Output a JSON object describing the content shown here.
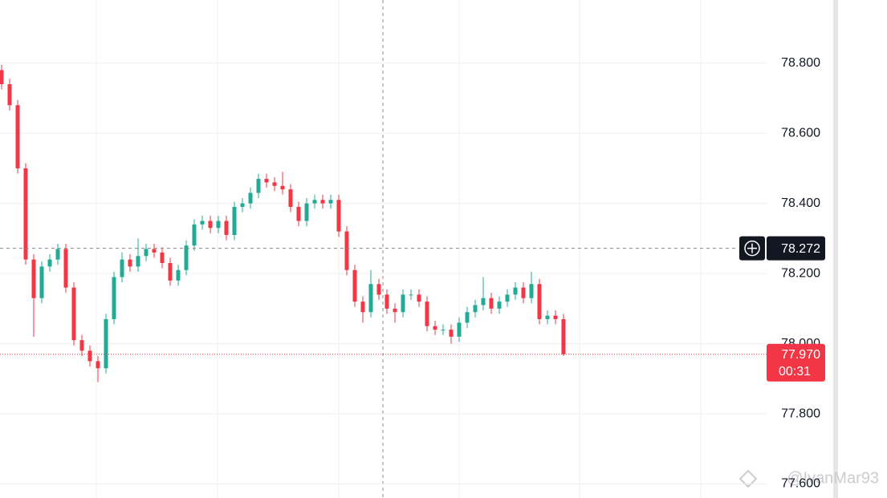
{
  "chart_data": {
    "type": "candlestick",
    "up_color": "#22ab94",
    "down_color": "#f23645",
    "ylim": [
      77.56,
      78.98
    ],
    "yticks": [
      {
        "value": 77.6,
        "label": "77.600"
      },
      {
        "value": 77.8,
        "label": "77.800"
      },
      {
        "value": 78.0,
        "label": "78.000"
      },
      {
        "value": 78.2,
        "label": "78.200"
      },
      {
        "value": 78.4,
        "label": "78.400"
      },
      {
        "value": 78.6,
        "label": "78.600"
      },
      {
        "value": 78.8,
        "label": "78.800"
      }
    ],
    "grid": true,
    "open": [
      78.78,
      78.74,
      78.68,
      78.5,
      78.24,
      78.13,
      78.22,
      78.24,
      78.27,
      78.16,
      78.01,
      77.98,
      77.95,
      77.93,
      78.07,
      78.19,
      78.24,
      78.22,
      78.25,
      78.27,
      78.26,
      78.23,
      78.18,
      78.21,
      78.28,
      78.34,
      78.35,
      78.33,
      78.35,
      78.31,
      78.39,
      78.4,
      78.43,
      78.47,
      78.46,
      78.45,
      78.44,
      78.39,
      78.35,
      78.4,
      78.41,
      78.4,
      78.41,
      78.32,
      78.21,
      78.12,
      78.09,
      78.17,
      78.14,
      78.1,
      78.09,
      78.14,
      78.14,
      78.12,
      78.05,
      78.04,
      78.04,
      78.02,
      78.06,
      78.09,
      78.11,
      78.13,
      78.1,
      78.12,
      78.14,
      78.16,
      78.13,
      78.17,
      78.07,
      78.08,
      78.07
    ],
    "high": [
      78.795,
      78.755,
      78.695,
      78.515,
      78.255,
      78.235,
      78.255,
      78.285,
      78.285,
      78.175,
      78.025,
      77.995,
      77.965,
      78.085,
      78.205,
      78.26,
      78.255,
      78.3,
      78.285,
      78.285,
      78.275,
      78.245,
      78.225,
      78.295,
      78.355,
      78.365,
      78.365,
      78.365,
      78.365,
      78.405,
      78.415,
      78.445,
      78.485,
      78.485,
      78.475,
      78.49,
      78.455,
      78.405,
      78.415,
      78.425,
      78.425,
      78.425,
      78.425,
      78.335,
      78.225,
      78.135,
      78.21,
      78.185,
      78.155,
      78.115,
      78.155,
      78.155,
      78.155,
      78.135,
      78.065,
      78.055,
      78.055,
      78.075,
      78.105,
      78.125,
      78.19,
      78.145,
      78.135,
      78.155,
      78.175,
      78.175,
      78.205,
      78.185,
      78.095,
      78.095,
      78.085
    ],
    "low": [
      78.725,
      78.665,
      78.485,
      78.225,
      78.02,
      78.115,
      78.205,
      78.225,
      78.145,
      77.995,
      77.965,
      77.935,
      77.89,
      77.915,
      78.055,
      78.175,
      78.205,
      78.205,
      78.235,
      78.245,
      78.215,
      78.165,
      78.165,
      78.195,
      78.265,
      78.325,
      78.315,
      78.315,
      78.295,
      78.295,
      78.375,
      78.385,
      78.415,
      78.445,
      78.435,
      78.425,
      78.375,
      78.335,
      78.335,
      78.385,
      78.385,
      78.385,
      78.305,
      78.195,
      78.105,
      78.06,
      78.075,
      78.125,
      78.085,
      78.06,
      78.075,
      78.125,
      78.105,
      78.035,
      78.025,
      78.025,
      78.0,
      78.005,
      78.045,
      78.075,
      78.095,
      78.085,
      78.085,
      78.105,
      78.125,
      78.115,
      78.115,
      78.055,
      78.055,
      78.055,
      77.965
    ],
    "close": [
      78.74,
      78.68,
      78.5,
      78.24,
      78.13,
      78.22,
      78.24,
      78.27,
      78.16,
      78.01,
      77.98,
      77.95,
      77.93,
      78.07,
      78.19,
      78.24,
      78.22,
      78.25,
      78.27,
      78.26,
      78.23,
      78.18,
      78.21,
      78.28,
      78.34,
      78.35,
      78.33,
      78.35,
      78.31,
      78.39,
      78.4,
      78.43,
      78.47,
      78.46,
      78.45,
      78.44,
      78.39,
      78.35,
      78.4,
      78.41,
      78.4,
      78.41,
      78.32,
      78.21,
      78.12,
      78.09,
      78.17,
      78.14,
      78.1,
      78.09,
      78.14,
      78.14,
      78.12,
      78.05,
      78.04,
      78.04,
      78.02,
      78.06,
      78.09,
      78.11,
      78.13,
      78.1,
      78.12,
      78.14,
      78.16,
      78.13,
      78.17,
      78.07,
      78.08,
      78.07,
      77.97
    ],
    "crosshair_price": {
      "value": 78.272,
      "label": "78.272"
    },
    "last_price": {
      "value": 77.97,
      "label": "77.970"
    },
    "countdown": "00:31",
    "watermark": "@IvanMar93"
  }
}
